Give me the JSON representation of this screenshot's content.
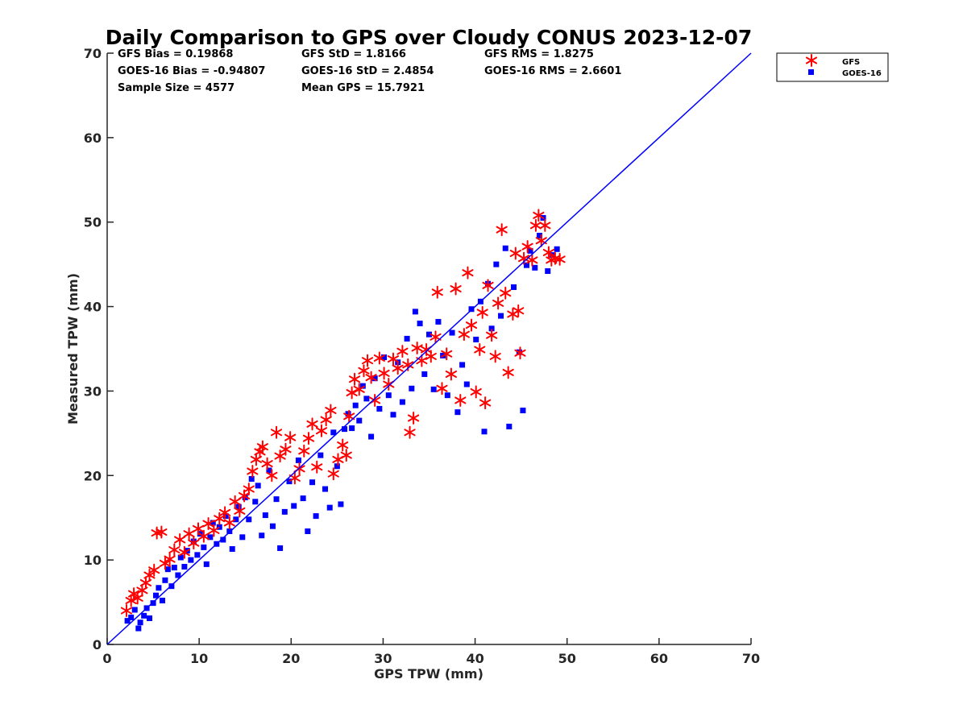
{
  "colors": {
    "gfs": "#ff0000",
    "goes": "#0000ff",
    "line": "#0000ff",
    "axis": "#262626"
  },
  "stats": {
    "gfs_bias": "GFS Bias = 0.19868",
    "goes_bias": "GOES-16 Bias = -0.94807",
    "sample_size": "Sample Size = 4577",
    "gfs_std": "GFS StD = 1.8166",
    "goes_std": "GOES-16 StD = 2.4854",
    "mean_gps": "Mean GPS = 15.7921",
    "gfs_rms": "GFS RMS = 1.8275",
    "goes_rms": "GOES-16 RMS = 2.6601"
  },
  "chart_data": {
    "type": "scatter",
    "title": "Daily Comparison to GPS over Cloudy CONUS 2023-12-07",
    "xlabel": "GPS TPW (mm)",
    "ylabel": "Measured TPW (mm)",
    "xlim": [
      0,
      70
    ],
    "ylim": [
      0,
      70
    ],
    "xticks": [
      "0",
      "10",
      "20",
      "30",
      "40",
      "50",
      "60",
      "70"
    ],
    "yticks": [
      "0",
      "10",
      "20",
      "30",
      "40",
      "50",
      "60",
      "70"
    ],
    "grid": false,
    "legend_position": "outside top-right",
    "reference_line": {
      "name": "1:1",
      "x": [
        0,
        70
      ],
      "y": [
        0,
        70
      ]
    },
    "series": [
      {
        "name": "GFS",
        "marker": "asterisk",
        "points": [
          [
            2.1,
            4.0
          ],
          [
            2.6,
            5.2
          ],
          [
            2.9,
            6.0
          ],
          [
            3.3,
            5.5
          ],
          [
            3.8,
            6.4
          ],
          [
            4.2,
            7.3
          ],
          [
            4.6,
            8.2
          ],
          [
            5.1,
            8.8
          ],
          [
            5.4,
            13.2
          ],
          [
            5.9,
            13.3
          ],
          [
            6.3,
            9.6
          ],
          [
            6.8,
            10.1
          ],
          [
            7.3,
            11.2
          ],
          [
            7.9,
            12.4
          ],
          [
            8.4,
            10.9
          ],
          [
            8.9,
            13.1
          ],
          [
            9.4,
            12.0
          ],
          [
            9.9,
            13.7
          ],
          [
            10.5,
            12.8
          ],
          [
            11.0,
            14.3
          ],
          [
            11.6,
            13.5
          ],
          [
            12.2,
            14.9
          ],
          [
            12.8,
            15.6
          ],
          [
            13.3,
            14.4
          ],
          [
            13.9,
            16.9
          ],
          [
            14.4,
            15.8
          ],
          [
            14.9,
            17.6
          ],
          [
            15.4,
            18.4
          ],
          [
            15.8,
            20.5
          ],
          [
            16.2,
            21.9
          ],
          [
            16.6,
            22.8
          ],
          [
            16.9,
            23.4
          ],
          [
            17.4,
            21.4
          ],
          [
            17.9,
            20.0
          ],
          [
            18.4,
            25.1
          ],
          [
            18.8,
            22.3
          ],
          [
            19.4,
            23.1
          ],
          [
            19.9,
            24.5
          ],
          [
            20.4,
            19.7
          ],
          [
            20.9,
            20.8
          ],
          [
            21.4,
            22.9
          ],
          [
            21.9,
            24.4
          ],
          [
            22.3,
            26.1
          ],
          [
            22.8,
            21.0
          ],
          [
            23.3,
            25.3
          ],
          [
            23.8,
            26.6
          ],
          [
            24.3,
            27.7
          ],
          [
            24.6,
            20.2
          ],
          [
            25.1,
            21.9
          ],
          [
            25.6,
            23.6
          ],
          [
            26.0,
            22.4
          ],
          [
            26.3,
            27.0
          ],
          [
            26.6,
            29.8
          ],
          [
            26.9,
            31.4
          ],
          [
            27.4,
            30.2
          ],
          [
            27.9,
            32.4
          ],
          [
            28.3,
            33.6
          ],
          [
            28.7,
            31.6
          ],
          [
            29.1,
            28.9
          ],
          [
            29.6,
            33.9
          ],
          [
            30.1,
            32.1
          ],
          [
            30.6,
            30.8
          ],
          [
            31.1,
            33.8
          ],
          [
            31.6,
            32.7
          ],
          [
            32.1,
            34.7
          ],
          [
            32.7,
            33.1
          ],
          [
            32.9,
            25.1
          ],
          [
            33.3,
            26.8
          ],
          [
            33.7,
            35.1
          ],
          [
            34.2,
            33.6
          ],
          [
            34.7,
            34.9
          ],
          [
            35.2,
            34.1
          ],
          [
            35.7,
            36.4
          ],
          [
            35.9,
            41.7
          ],
          [
            36.4,
            30.3
          ],
          [
            36.9,
            34.4
          ],
          [
            37.4,
            32.0
          ],
          [
            37.9,
            42.1
          ],
          [
            38.4,
            28.9
          ],
          [
            38.8,
            36.7
          ],
          [
            39.2,
            44.0
          ],
          [
            39.6,
            37.8
          ],
          [
            40.1,
            29.9
          ],
          [
            40.5,
            34.9
          ],
          [
            40.8,
            39.3
          ],
          [
            41.1,
            28.6
          ],
          [
            41.4,
            42.5
          ],
          [
            41.8,
            36.6
          ],
          [
            42.2,
            34.1
          ],
          [
            42.5,
            40.4
          ],
          [
            42.9,
            49.1
          ],
          [
            43.3,
            41.6
          ],
          [
            43.6,
            32.2
          ],
          [
            44.1,
            39.1
          ],
          [
            44.4,
            46.3
          ],
          [
            44.7,
            39.5
          ],
          [
            44.9,
            34.5
          ],
          [
            45.3,
            45.7
          ],
          [
            45.7,
            47.1
          ],
          [
            46.2,
            45.5
          ],
          [
            46.6,
            49.6
          ],
          [
            46.9,
            50.8
          ],
          [
            47.2,
            47.8
          ],
          [
            47.6,
            49.6
          ],
          [
            48.0,
            46.4
          ],
          [
            48.3,
            45.5
          ],
          [
            48.7,
            45.7
          ],
          [
            49.2,
            45.6
          ]
        ]
      },
      {
        "name": "GOES-16",
        "marker": "square",
        "points": [
          [
            2.2,
            2.8
          ],
          [
            2.6,
            3.2
          ],
          [
            3.0,
            4.1
          ],
          [
            3.4,
            1.9
          ],
          [
            3.6,
            2.6
          ],
          [
            4.0,
            3.4
          ],
          [
            4.3,
            4.3
          ],
          [
            4.6,
            3.1
          ],
          [
            5.0,
            4.9
          ],
          [
            5.3,
            5.8
          ],
          [
            5.6,
            6.7
          ],
          [
            6.0,
            5.2
          ],
          [
            6.3,
            7.6
          ],
          [
            6.6,
            8.9
          ],
          [
            7.0,
            6.9
          ],
          [
            7.3,
            9.1
          ],
          [
            7.7,
            8.2
          ],
          [
            8.0,
            10.3
          ],
          [
            8.4,
            9.2
          ],
          [
            8.7,
            11.1
          ],
          [
            9.1,
            10.0
          ],
          [
            9.4,
            12.2
          ],
          [
            9.8,
            10.6
          ],
          [
            10.1,
            13.1
          ],
          [
            10.5,
            11.5
          ],
          [
            10.8,
            9.5
          ],
          [
            11.2,
            12.7
          ],
          [
            11.5,
            14.4
          ],
          [
            11.9,
            11.9
          ],
          [
            12.2,
            13.9
          ],
          [
            12.6,
            12.4
          ],
          [
            12.9,
            15.2
          ],
          [
            13.3,
            13.4
          ],
          [
            13.6,
            11.3
          ],
          [
            14.0,
            14.8
          ],
          [
            14.3,
            16.3
          ],
          [
            14.7,
            12.7
          ],
          [
            15.0,
            17.4
          ],
          [
            15.4,
            14.8
          ],
          [
            15.7,
            19.6
          ],
          [
            16.1,
            16.9
          ],
          [
            16.4,
            18.8
          ],
          [
            16.8,
            12.9
          ],
          [
            17.2,
            15.3
          ],
          [
            17.6,
            20.6
          ],
          [
            18.0,
            14.0
          ],
          [
            18.4,
            17.2
          ],
          [
            18.8,
            11.4
          ],
          [
            19.3,
            15.7
          ],
          [
            19.8,
            19.3
          ],
          [
            20.3,
            16.4
          ],
          [
            20.8,
            21.8
          ],
          [
            21.3,
            17.3
          ],
          [
            21.8,
            13.4
          ],
          [
            22.3,
            19.2
          ],
          [
            22.7,
            15.2
          ],
          [
            23.2,
            22.4
          ],
          [
            23.7,
            18.4
          ],
          [
            24.2,
            16.2
          ],
          [
            24.6,
            25.1
          ],
          [
            25.0,
            21.1
          ],
          [
            25.4,
            16.6
          ],
          [
            25.8,
            25.5
          ],
          [
            26.2,
            27.3
          ],
          [
            26.6,
            25.6
          ],
          [
            27.0,
            28.3
          ],
          [
            27.4,
            26.5
          ],
          [
            27.8,
            30.6
          ],
          [
            28.2,
            29.1
          ],
          [
            28.7,
            24.6
          ],
          [
            29.1,
            31.5
          ],
          [
            29.6,
            27.9
          ],
          [
            30.1,
            34.0
          ],
          [
            30.6,
            29.5
          ],
          [
            31.1,
            27.2
          ],
          [
            31.6,
            33.4
          ],
          [
            32.1,
            28.7
          ],
          [
            32.6,
            36.2
          ],
          [
            33.1,
            30.3
          ],
          [
            33.5,
            39.4
          ],
          [
            34.0,
            38.0
          ],
          [
            34.5,
            32.0
          ],
          [
            35.0,
            36.7
          ],
          [
            35.5,
            30.2
          ],
          [
            36.0,
            38.2
          ],
          [
            36.5,
            34.2
          ],
          [
            37.0,
            29.5
          ],
          [
            37.5,
            36.9
          ],
          [
            38.1,
            27.5
          ],
          [
            38.6,
            33.1
          ],
          [
            39.1,
            30.8
          ],
          [
            39.6,
            39.7
          ],
          [
            40.1,
            36.1
          ],
          [
            40.6,
            40.6
          ],
          [
            41.0,
            25.2
          ],
          [
            41.4,
            42.7
          ],
          [
            41.8,
            37.4
          ],
          [
            42.3,
            45.0
          ],
          [
            42.8,
            38.9
          ],
          [
            43.3,
            46.9
          ],
          [
            43.7,
            25.8
          ],
          [
            44.2,
            42.3
          ],
          [
            44.8,
            34.6
          ],
          [
            45.2,
            27.7
          ],
          [
            45.6,
            44.9
          ],
          [
            46.0,
            46.6
          ],
          [
            46.5,
            44.6
          ],
          [
            47.0,
            48.4
          ],
          [
            47.4,
            50.5
          ],
          [
            47.9,
            44.2
          ],
          [
            48.4,
            46.1
          ],
          [
            48.9,
            46.8
          ]
        ]
      }
    ]
  }
}
